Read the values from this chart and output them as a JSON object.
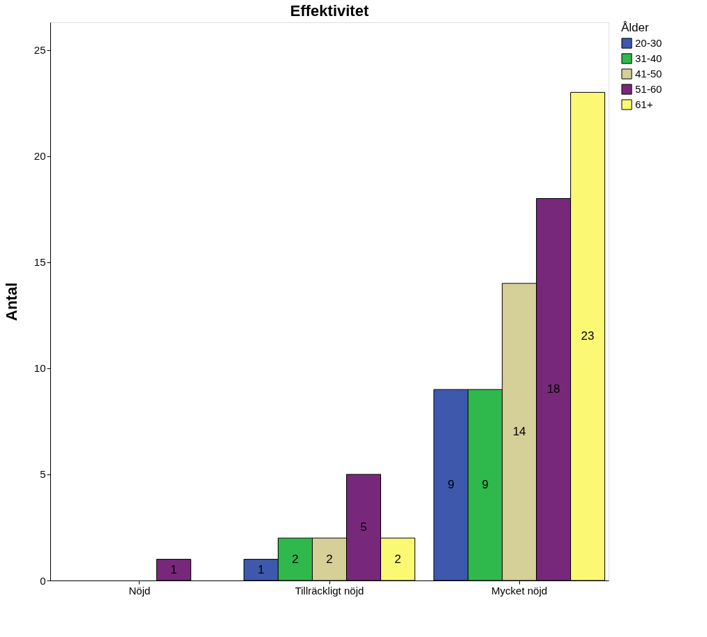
{
  "chart_data": {
    "type": "bar",
    "title": "Effektivitet",
    "ylabel": "Antal",
    "legend_title": "Ålder",
    "categories": [
      "Nöjd",
      "Tillräckligt nöjd",
      "Mycket nöjd"
    ],
    "series": [
      {
        "name": "20-30",
        "color": "#3e58ac",
        "values": [
          null,
          1,
          9
        ]
      },
      {
        "name": "31-40",
        "color": "#2fb84c",
        "values": [
          null,
          2,
          9
        ]
      },
      {
        "name": "41-50",
        "color": "#d5cf98",
        "values": [
          null,
          2,
          14
        ]
      },
      {
        "name": "51-60",
        "color": "#78287a",
        "values": [
          1,
          5,
          18
        ]
      },
      {
        "name": "61+",
        "color": "#fbf873",
        "values": [
          null,
          2,
          23
        ]
      }
    ],
    "ylim": [
      0,
      26.3
    ],
    "yticks": [
      0,
      5,
      10,
      15,
      20,
      25
    ],
    "data_labels": true,
    "legend": "top right",
    "grid": false
  }
}
